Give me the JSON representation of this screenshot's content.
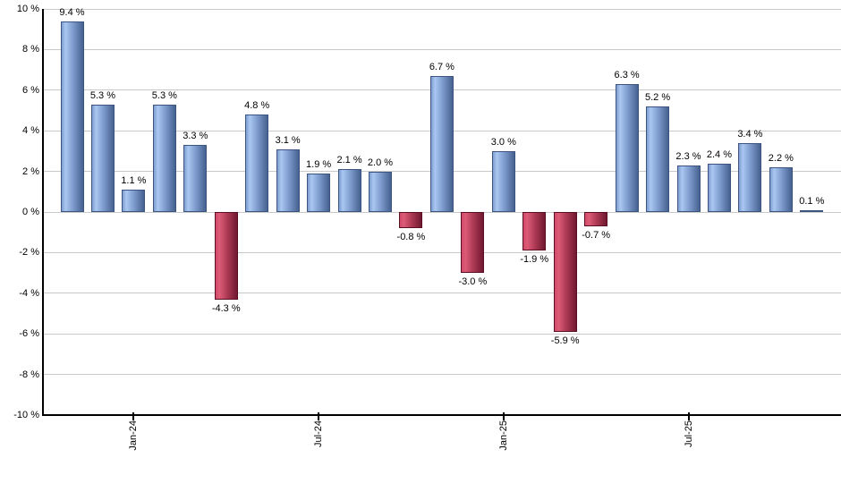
{
  "chart_data": {
    "type": "bar",
    "title": "",
    "description": "Monthly returns bar chart, positive months blue, negative months red",
    "unit": "%",
    "bars": [
      {
        "value": 9.4,
        "label": "9.4 %"
      },
      {
        "value": 5.3,
        "label": "5.3 %"
      },
      {
        "value": 1.1,
        "label": "1.1 %"
      },
      {
        "value": 5.3,
        "label": "5.3 %"
      },
      {
        "value": 3.3,
        "label": "3.3 %"
      },
      {
        "value": -4.3,
        "label": "-4.3 %"
      },
      {
        "value": 4.8,
        "label": "4.8 %"
      },
      {
        "value": 3.1,
        "label": "3.1 %"
      },
      {
        "value": 1.9,
        "label": "1.9 %"
      },
      {
        "value": 2.1,
        "label": "2.1 %"
      },
      {
        "value": 2.0,
        "label": "2.0 %"
      },
      {
        "value": -0.8,
        "label": "-0.8 %"
      },
      {
        "value": 6.7,
        "label": "6.7 %"
      },
      {
        "value": -3.0,
        "label": "-3.0 %"
      },
      {
        "value": 3.0,
        "label": "3.0 %"
      },
      {
        "value": -1.9,
        "label": "-1.9 %"
      },
      {
        "value": -5.9,
        "label": "-5.9 %"
      },
      {
        "value": -0.7,
        "label": "-0.7 %"
      },
      {
        "value": 6.3,
        "label": "6.3 %"
      },
      {
        "value": 5.2,
        "label": "5.2 %"
      },
      {
        "value": 2.3,
        "label": "2.3 %"
      },
      {
        "value": 2.4,
        "label": "2.4 %"
      },
      {
        "value": 3.4,
        "label": "3.4 %"
      },
      {
        "value": 2.2,
        "label": "2.2 %"
      },
      {
        "value": 0.1,
        "label": "0.1 %"
      }
    ],
    "x_ticks": [
      {
        "index": 2,
        "label": "Jan-24"
      },
      {
        "index": 8,
        "label": "Jul-24"
      },
      {
        "index": 14,
        "label": "Jan-25"
      },
      {
        "index": 20,
        "label": "Jul-25"
      }
    ],
    "y_axis": {
      "min": -10,
      "max": 10,
      "step": 2,
      "tick_labels": [
        "10 %",
        "8 %",
        "6 %",
        "4 %",
        "2 %",
        "0 %",
        "-2 %",
        "-4 %",
        "-6 %",
        "-8 %",
        "-10 %"
      ]
    },
    "grid": true,
    "legend": false,
    "colors": {
      "background": "#ffffff",
      "gridline": "#c9c9c9",
      "axis": "#000000",
      "label_text": "#000000",
      "positive_gradient": [
        "#7e9ed2",
        "#a9c7f0",
        "#7e9cce",
        "#46618f"
      ],
      "positive_border": "#3c5480",
      "negative_gradient": [
        "#cf4a68",
        "#dd5b76",
        "#b03b56",
        "#701830"
      ],
      "negative_border": "#5c0e22"
    }
  }
}
